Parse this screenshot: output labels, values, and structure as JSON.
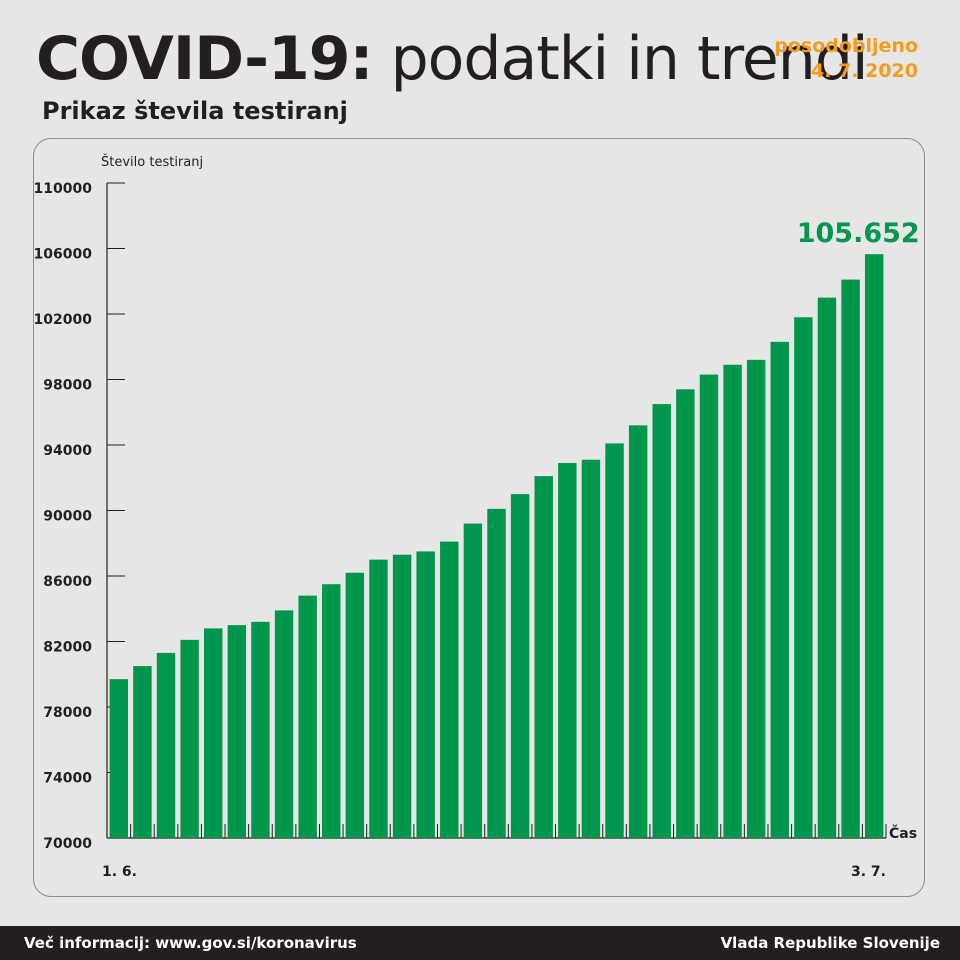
{
  "header": {
    "title_bold": "COVID-19:",
    "title_light": "podatki in trendi",
    "updated_label": "posodobljeno",
    "updated_date": "4. 7. 2020",
    "subtitle": "Prikaz števila testiranj"
  },
  "footer": {
    "left": "Več informacij: www.gov.si/koronavirus",
    "right": "Vlada Republike Slovenije"
  },
  "colors": {
    "bar": "#00964b",
    "highlight_label": "#00964b",
    "accent": "#f39c1f",
    "footer_bg": "#231f20"
  },
  "chart_data": {
    "type": "bar",
    "ylabel": "Število testiranj",
    "xlabel": "Čas",
    "ylim": [
      70000,
      110000
    ],
    "yticks": [
      "110000",
      "106000",
      "102000",
      "98000",
      "94000",
      "90000",
      "86000",
      "82000",
      "78000",
      "74000",
      "70000"
    ],
    "x_start_label": "1. 6.",
    "x_end_label": "3. 7.",
    "highlight_label": "105.652",
    "grid": false,
    "values": [
      79700,
      80500,
      81300,
      82100,
      82800,
      83000,
      83200,
      83900,
      84800,
      85500,
      86200,
      87000,
      87300,
      87500,
      88100,
      89200,
      90100,
      91000,
      92100,
      92900,
      93100,
      94100,
      95200,
      96500,
      97400,
      98300,
      98900,
      99200,
      100300,
      101800,
      103000,
      104100,
      105652
    ]
  }
}
